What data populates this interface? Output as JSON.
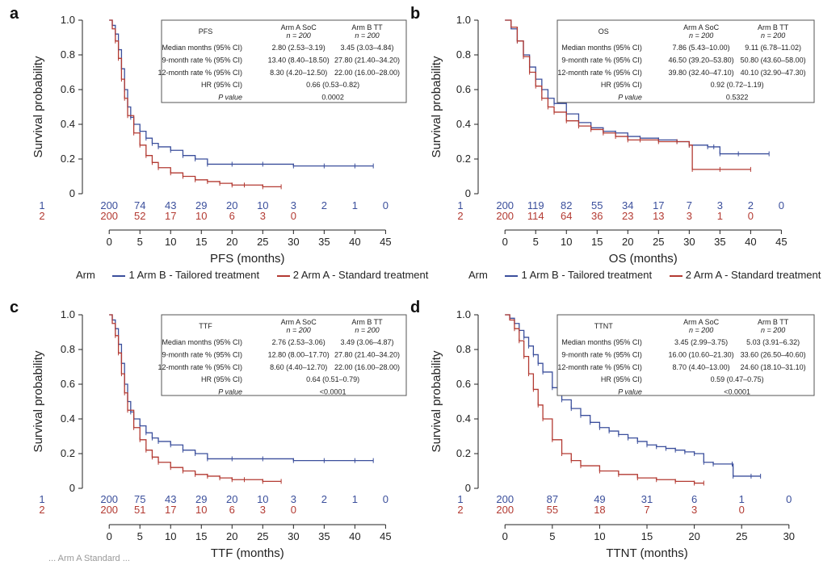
{
  "legend": {
    "title": "Arm",
    "arm_b_label": "1 Arm B - Tailored treatment",
    "arm_a_label": "2 Arm A - Standard treatment"
  },
  "colors": {
    "arm_b": "#3b4f9c",
    "arm_a": "#b33a32",
    "table_border": "#555555"
  },
  "footer_text": "... Arm A Standard ...",
  "chart_data": [
    {
      "panel": "a",
      "type": "line",
      "xlabel": "PFS (months)",
      "ylabel": "Survival probability",
      "xticks": [
        0,
        5,
        10,
        15,
        20,
        25,
        30,
        35,
        40,
        45
      ],
      "yticks": [
        0,
        0.2,
        0.4,
        0.6,
        0.8,
        1.0
      ],
      "ytick_labels": [
        "0",
        "0.2",
        "0.4",
        "0.6",
        "0.8",
        "1.0"
      ],
      "xlim": [
        -2,
        46
      ],
      "ylim": [
        0,
        1.0
      ],
      "series": [
        {
          "name": "1 Arm B - Tailored treatment",
          "arm": "arm_b",
          "x": [
            0,
            0.5,
            1,
            1.5,
            2,
            2.5,
            3,
            3.5,
            4,
            5,
            6,
            7,
            8,
            10,
            12,
            14,
            16,
            20,
            25,
            30,
            35,
            40,
            43
          ],
          "y": [
            1,
            0.97,
            0.92,
            0.83,
            0.72,
            0.6,
            0.5,
            0.44,
            0.4,
            0.36,
            0.32,
            0.29,
            0.27,
            0.25,
            0.22,
            0.2,
            0.17,
            0.17,
            0.17,
            0.16,
            0.16,
            0.16,
            0.16
          ]
        },
        {
          "name": "2 Arm A - Standard treatment",
          "arm": "arm_a",
          "x": [
            0,
            0.5,
            1,
            1.5,
            2,
            2.5,
            3,
            4,
            5,
            6,
            7,
            8,
            10,
            12,
            14,
            16,
            18,
            20,
            22,
            25,
            28
          ],
          "y": [
            1,
            0.95,
            0.88,
            0.78,
            0.66,
            0.55,
            0.45,
            0.35,
            0.28,
            0.22,
            0.18,
            0.15,
            0.12,
            0.1,
            0.08,
            0.07,
            0.06,
            0.05,
            0.05,
            0.04,
            0.04
          ]
        }
      ],
      "risk": {
        "row_labels": [
          "1",
          "2"
        ],
        "x": [
          0,
          5,
          10,
          15,
          20,
          25,
          30,
          35,
          40,
          45
        ],
        "arm_b": [
          "200",
          "74",
          "43",
          "29",
          "20",
          "10",
          "3",
          "2",
          "1",
          "0"
        ],
        "arm_a": [
          "200",
          "52",
          "17",
          "10",
          "6",
          "3",
          "0",
          "",
          "",
          ""
        ]
      },
      "stats": {
        "endpoint": "PFS",
        "arm_a_header": "Arm A SoC",
        "arm_b_header": "Arm B TT",
        "n_label": "n = 200",
        "rows": [
          {
            "label": "Median months (95% CI)",
            "a": "2.80 (2.53–3.19)",
            "b": "3.45 (3.03–4.84)"
          },
          {
            "label": "9-month rate % (95% CI)",
            "a": "13.40 (8.40–18.50)",
            "b": "27.80 (21.40–34.20)"
          },
          {
            "label": "12-month rate % (95% CI)",
            "a": "8.30 (4.20–12.50)",
            "b": "22.00 (16.00–28.00)"
          }
        ],
        "hr_label": "HR (95% CI)",
        "hr": "0.66 (0.53–0.82)",
        "p_label": "P value",
        "p": "0.0002"
      }
    },
    {
      "panel": "b",
      "type": "line",
      "xlabel": "OS (months)",
      "ylabel": "Survival probability",
      "xticks": [
        0,
        5,
        10,
        15,
        20,
        25,
        30,
        35,
        40,
        45
      ],
      "yticks": [
        0,
        0.2,
        0.4,
        0.6,
        0.8,
        1.0
      ],
      "ytick_labels": [
        "0",
        "0.2",
        "0.4",
        "0.6",
        "0.8",
        "1.0"
      ],
      "xlim": [
        -2,
        46
      ],
      "ylim": [
        0,
        1.0
      ],
      "series": [
        {
          "name": "1 Arm B - Tailored treatment",
          "arm": "arm_b",
          "x": [
            0,
            1,
            2,
            3,
            4,
            5,
            6,
            7,
            8,
            10,
            12,
            14,
            16,
            18,
            20,
            22,
            25,
            28,
            30,
            33,
            34,
            35,
            38,
            43
          ],
          "y": [
            1,
            0.95,
            0.88,
            0.8,
            0.73,
            0.66,
            0.6,
            0.55,
            0.52,
            0.46,
            0.41,
            0.38,
            0.36,
            0.35,
            0.33,
            0.32,
            0.31,
            0.3,
            0.28,
            0.27,
            0.27,
            0.23,
            0.23,
            0.23
          ]
        },
        {
          "name": "2 Arm A - Standard treatment",
          "arm": "arm_a",
          "x": [
            0,
            1,
            2,
            3,
            4,
            5,
            6,
            7,
            8,
            10,
            12,
            14,
            16,
            18,
            20,
            22,
            25,
            28,
            30,
            30.5,
            35,
            40
          ],
          "y": [
            1,
            0.96,
            0.88,
            0.79,
            0.7,
            0.62,
            0.55,
            0.5,
            0.47,
            0.42,
            0.39,
            0.37,
            0.35,
            0.33,
            0.31,
            0.31,
            0.3,
            0.3,
            0.28,
            0.14,
            0.14,
            0.14
          ]
        }
      ],
      "risk": {
        "row_labels": [
          "1",
          "2"
        ],
        "x": [
          0,
          5,
          10,
          15,
          20,
          25,
          30,
          35,
          40,
          45
        ],
        "arm_b": [
          "200",
          "119",
          "82",
          "55",
          "34",
          "17",
          "7",
          "3",
          "2",
          "0"
        ],
        "arm_a": [
          "200",
          "114",
          "64",
          "36",
          "23",
          "13",
          "3",
          "1",
          "0",
          ""
        ]
      },
      "stats": {
        "endpoint": "OS",
        "arm_a_header": "Arm A SoC",
        "arm_b_header": "Arm B TT",
        "n_label": "n = 200",
        "rows": [
          {
            "label": "Median months (95% CI)",
            "a": "7.86 (5.43–10.00)",
            "b": "9.11 (6.78–11.02)"
          },
          {
            "label": "9-month rate % (95% CI)",
            "a": "46.50 (39.20–53.80)",
            "b": "50.80 (43.60–58.00)"
          },
          {
            "label": "12-month rate % (95% CI)",
            "a": "39.80 (32.40–47.10)",
            "b": "40.10 (32.90–47.30)"
          }
        ],
        "hr_label": "HR (95% CI)",
        "hr": "0.92 (0.72–1.19)",
        "p_label": "P value",
        "p": "0.5322"
      }
    },
    {
      "panel": "c",
      "type": "line",
      "xlabel": "TTF (months)",
      "ylabel": "Survival probability",
      "xticks": [
        0,
        5,
        10,
        15,
        20,
        25,
        30,
        35,
        40,
        45
      ],
      "yticks": [
        0,
        0.2,
        0.4,
        0.6,
        0.8,
        1.0
      ],
      "ytick_labels": [
        "0",
        "0.2",
        "0.4",
        "0.6",
        "0.8",
        "1.0"
      ],
      "xlim": [
        -2,
        46
      ],
      "ylim": [
        0,
        1.0
      ],
      "series": [
        {
          "name": "1 Arm B - Tailored treatment",
          "arm": "arm_b",
          "x": [
            0,
            0.5,
            1,
            1.5,
            2,
            2.5,
            3,
            3.5,
            4,
            5,
            6,
            7,
            8,
            10,
            12,
            14,
            16,
            20,
            25,
            30,
            35,
            40,
            43
          ],
          "y": [
            1,
            0.97,
            0.92,
            0.83,
            0.72,
            0.6,
            0.5,
            0.44,
            0.4,
            0.36,
            0.32,
            0.29,
            0.27,
            0.25,
            0.22,
            0.2,
            0.17,
            0.17,
            0.17,
            0.16,
            0.16,
            0.16,
            0.16
          ]
        },
        {
          "name": "2 Arm A - Standard treatment",
          "arm": "arm_a",
          "x": [
            0,
            0.5,
            1,
            1.5,
            2,
            2.5,
            3,
            4,
            5,
            6,
            7,
            8,
            10,
            12,
            14,
            16,
            18,
            20,
            22,
            25,
            28
          ],
          "y": [
            1,
            0.95,
            0.88,
            0.78,
            0.66,
            0.55,
            0.45,
            0.35,
            0.28,
            0.22,
            0.18,
            0.15,
            0.12,
            0.1,
            0.08,
            0.07,
            0.06,
            0.05,
            0.05,
            0.04,
            0.04
          ]
        }
      ],
      "risk": {
        "row_labels": [
          "1",
          "2"
        ],
        "x": [
          0,
          5,
          10,
          15,
          20,
          25,
          30,
          35,
          40,
          45
        ],
        "arm_b": [
          "200",
          "75",
          "43",
          "29",
          "20",
          "10",
          "3",
          "2",
          "1",
          "0"
        ],
        "arm_a": [
          "200",
          "51",
          "17",
          "10",
          "6",
          "3",
          "0",
          "",
          "",
          ""
        ]
      },
      "stats": {
        "endpoint": "TTF",
        "arm_a_header": "Arm A SoC",
        "arm_b_header": "Arm B TT",
        "n_label": "n = 200",
        "rows": [
          {
            "label": "Median months (95% CI)",
            "a": "2.76 (2.53–3.06)",
            "b": "3.49 (3.06–4.87)"
          },
          {
            "label": "9-month rate % (95% CI)",
            "a": "12.80 (8.00–17.70)",
            "b": "27.80 (21.40–34.20)"
          },
          {
            "label": "12-month rate % (95% CI)",
            "a": "8.60 (4.40–12.70)",
            "b": "22.00 (16.00–28.00)"
          }
        ],
        "hr_label": "HR (95% CI)",
        "hr": "0.64 (0.51–0.79)",
        "p_label": "P value",
        "p": "<0.0001"
      }
    },
    {
      "panel": "d",
      "type": "line",
      "xlabel": "TTNT (months)",
      "ylabel": "Survival probability",
      "xticks": [
        0,
        5,
        10,
        15,
        20,
        25,
        30
      ],
      "yticks": [
        0,
        0.2,
        0.4,
        0.6,
        0.8,
        1.0
      ],
      "ytick_labels": [
        "0",
        "0.2",
        "0.4",
        "0.6",
        "0.8",
        "1.0"
      ],
      "xlim": [
        -1.3,
        30.7
      ],
      "ylim": [
        0,
        1.0
      ],
      "series": [
        {
          "name": "1 Arm B - Tailored treatment",
          "arm": "arm_b",
          "x": [
            0,
            0.5,
            1,
            1.5,
            2,
            2.5,
            3,
            3.5,
            4,
            5,
            6,
            7,
            8,
            9,
            10,
            11,
            12,
            13,
            14,
            15,
            16,
            17,
            18,
            19,
            20,
            21,
            22,
            24,
            24.1,
            26,
            27
          ],
          "y": [
            1,
            0.98,
            0.95,
            0.91,
            0.87,
            0.82,
            0.77,
            0.72,
            0.67,
            0.58,
            0.51,
            0.46,
            0.42,
            0.38,
            0.35,
            0.33,
            0.31,
            0.29,
            0.27,
            0.25,
            0.24,
            0.23,
            0.22,
            0.21,
            0.2,
            0.15,
            0.14,
            0.14,
            0.07,
            0.07,
            0.07
          ]
        },
        {
          "name": "2 Arm A - Standard treatment",
          "arm": "arm_a",
          "x": [
            0,
            0.5,
            1,
            1.5,
            2,
            2.5,
            3,
            3.5,
            4,
            5,
            6,
            7,
            8,
            10,
            12,
            14,
            16,
            18,
            20,
            21
          ],
          "y": [
            1,
            0.97,
            0.92,
            0.85,
            0.76,
            0.66,
            0.57,
            0.48,
            0.4,
            0.28,
            0.2,
            0.16,
            0.13,
            0.1,
            0.08,
            0.06,
            0.05,
            0.04,
            0.03,
            0.03
          ]
        }
      ],
      "risk": {
        "row_labels": [
          "1",
          "2"
        ],
        "x": [
          0,
          5,
          10,
          15,
          20,
          25,
          30
        ],
        "arm_b": [
          "200",
          "87",
          "49",
          "31",
          "6",
          "1",
          "0"
        ],
        "arm_a": [
          "200",
          "55",
          "18",
          "7",
          "3",
          "0",
          ""
        ]
      },
      "stats": {
        "endpoint": "TTNT",
        "arm_a_header": "Arm A SoC",
        "arm_b_header": "Arm B TT",
        "n_label": "n = 200",
        "rows": [
          {
            "label": "Median months (95% CI)",
            "a": "3.45 (2.99–3.75)",
            "b": "5.03 (3.91–6.32)"
          },
          {
            "label": "9-month rate % (95% CI)",
            "a": "16.00 (10.60–21.30)",
            "b": "33.60 (26.50–40.60)"
          },
          {
            "label": "12-month rate % (95% CI)",
            "a": "8.70 (4.40–13.00)",
            "b": "24.60 (18.10–31.10)"
          }
        ],
        "hr_label": "HR (95% CI)",
        "hr": "0.59 (0.47–0.75)",
        "p_label": "P value",
        "p": "<0.0001"
      }
    }
  ]
}
